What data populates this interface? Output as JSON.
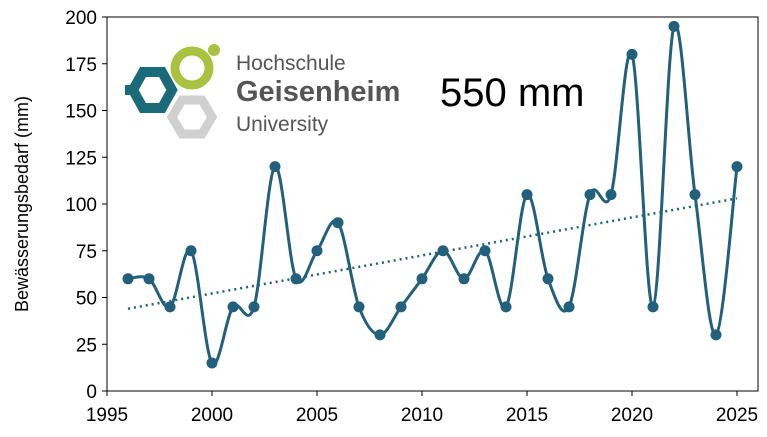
{
  "chart_data": {
    "type": "line",
    "y_label": "Bewässerungsbedarf (mm)",
    "annotation": "550 mm",
    "logo": {
      "line1": "Hochschule",
      "line2": "Geisenheim",
      "line3": "University"
    },
    "x": [
      1996,
      1997,
      1998,
      1999,
      2000,
      2001,
      2002,
      2003,
      2004,
      2005,
      2006,
      2007,
      2008,
      2009,
      2010,
      2011,
      2012,
      2013,
      2014,
      2015,
      2016,
      2017,
      2018,
      2019,
      2020,
      2021,
      2022,
      2023,
      2024,
      2025
    ],
    "series": [
      {
        "color": "#22607c",
        "values": [
          60,
          60,
          45,
          75,
          15,
          45,
          45,
          120,
          60,
          75,
          90,
          45,
          30,
          45,
          60,
          75,
          60,
          75,
          45,
          105,
          60,
          45,
          105,
          105,
          180,
          45,
          195,
          105,
          30,
          120
        ]
      }
    ],
    "trend": {
      "x": [
        1996,
        2025
      ],
      "values": [
        44,
        103
      ],
      "color": "#22607c"
    },
    "xlim": [
      1995,
      2026
    ],
    "xticks": [
      1995,
      2000,
      2005,
      2010,
      2015,
      2020,
      2025
    ],
    "ylim": [
      0,
      200
    ],
    "yticks": [
      0,
      25,
      50,
      75,
      100,
      125,
      150,
      175,
      200
    ]
  }
}
